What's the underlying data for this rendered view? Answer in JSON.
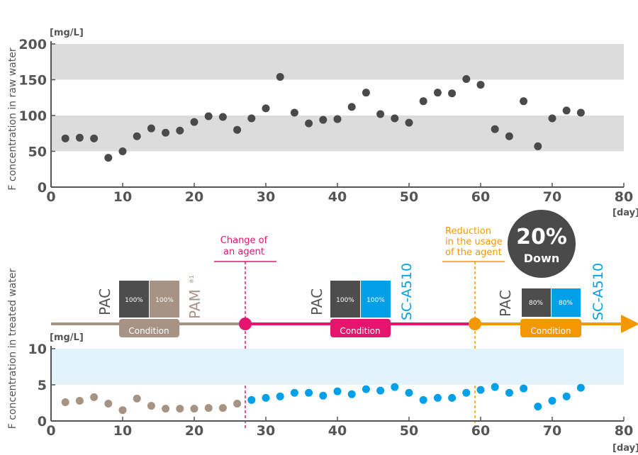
{
  "colors": {
    "band": "#dcdcdc",
    "band_light": "#e3f3fb",
    "raw_point": "#4a4a4a",
    "pam_phase": "#a69383",
    "sc_phase": "#e5156e",
    "reduction_phase": "#f39800",
    "blue": "#00a0e9",
    "dark_box": "#4d4d4d",
    "axis": "#555555",
    "badge": "#4a4a4a"
  },
  "annotations": {
    "change_agent": "Change of\nan agent",
    "reduction": "Reduction\nin the usage\nof the agent",
    "badge_big": "20%",
    "badge_small": "Down"
  },
  "phases": [
    {
      "agent1": "PAC",
      "agent2": "PAM",
      "agent2_sup": "※1",
      "pct1": "100%",
      "pct2": "100%",
      "condition": "Condition",
      "box2_color": "#a69383",
      "agent2_color": "#a69383",
      "line_color": "#a69383"
    },
    {
      "agent1": "PAC",
      "agent2": "SC-A510",
      "agent2_sup": "",
      "pct1": "100%",
      "pct2": "100%",
      "condition": "Condition",
      "box2_color": "#00a0e9",
      "agent2_color": "#00a0e9",
      "line_color": "#e5156e"
    },
    {
      "agent1": "PAC",
      "agent2": "SC-A510",
      "agent2_sup": "",
      "pct1": "80%",
      "pct2": "80%",
      "condition": "Condition",
      "box2_color": "#00a0e9",
      "agent2_color": "#00a0e9",
      "line_color": "#f39800"
    }
  ],
  "chart_data": [
    {
      "type": "scatter",
      "title": "",
      "ylabel": "F concentration in raw water",
      "yunit": "[mg/L]",
      "xunit": "[day]",
      "xlim": [
        0,
        80
      ],
      "ylim": [
        0,
        200
      ],
      "xticks": [
        "0",
        "10",
        "20",
        "30",
        "40",
        "50",
        "60",
        "70",
        "80"
      ],
      "yticks": [
        "0",
        "50",
        "100",
        "150",
        "200"
      ],
      "bands": [
        [
          50,
          100
        ],
        [
          150,
          200
        ]
      ],
      "series": [
        {
          "color": "#4a4a4a",
          "x": [
            2,
            4,
            6,
            8,
            10,
            12,
            14,
            16,
            18,
            20,
            22,
            24,
            26,
            28,
            30,
            32,
            34,
            36,
            38,
            40,
            42,
            44,
            46,
            48,
            50,
            52,
            54,
            56,
            58,
            60,
            62,
            64,
            66,
            68,
            70,
            72,
            74
          ],
          "y": [
            68,
            69,
            68,
            41,
            50,
            71,
            82,
            76,
            79,
            91,
            99,
            98,
            80,
            96,
            110,
            154,
            104,
            89,
            94,
            95,
            112,
            132,
            102,
            96,
            90,
            120,
            132,
            131,
            151,
            143,
            81,
            71,
            120,
            57,
            96,
            107,
            104
          ]
        }
      ]
    },
    {
      "type": "scatter",
      "title": "",
      "ylabel": "F concentration in treated water",
      "yunit": "[mg/L]",
      "xunit": "[day]",
      "xlim": [
        0,
        80
      ],
      "ylim": [
        0,
        10
      ],
      "xticks": [
        "0",
        "10",
        "20",
        "30",
        "40",
        "50",
        "60",
        "70",
        "80"
      ],
      "yticks": [
        "0",
        "5",
        "10"
      ],
      "bands": [
        [
          5,
          10
        ]
      ],
      "series": [
        {
          "color": "#a69383",
          "x": [
            2,
            4,
            6,
            8,
            10,
            12,
            14,
            16,
            18,
            20,
            22,
            24,
            26
          ],
          "y": [
            2.6,
            2.8,
            3.3,
            2.4,
            1.5,
            3.1,
            2.1,
            1.7,
            1.7,
            1.7,
            1.8,
            1.8,
            2.4
          ]
        },
        {
          "color": "#00a0e9",
          "x": [
            28,
            30,
            32,
            34,
            36,
            38,
            40,
            42,
            44,
            46,
            48,
            50,
            52,
            54,
            56,
            58,
            60,
            62,
            64,
            66,
            68,
            70,
            72,
            74
          ],
          "y": [
            2.9,
            3.2,
            3.4,
            3.9,
            3.9,
            3.5,
            4.1,
            3.7,
            4.4,
            4.2,
            4.7,
            3.9,
            2.9,
            3.2,
            3.2,
            3.9,
            4.3,
            4.7,
            3.9,
            4.5,
            2.0,
            2.8,
            3.4,
            4.6
          ]
        }
      ]
    }
  ]
}
